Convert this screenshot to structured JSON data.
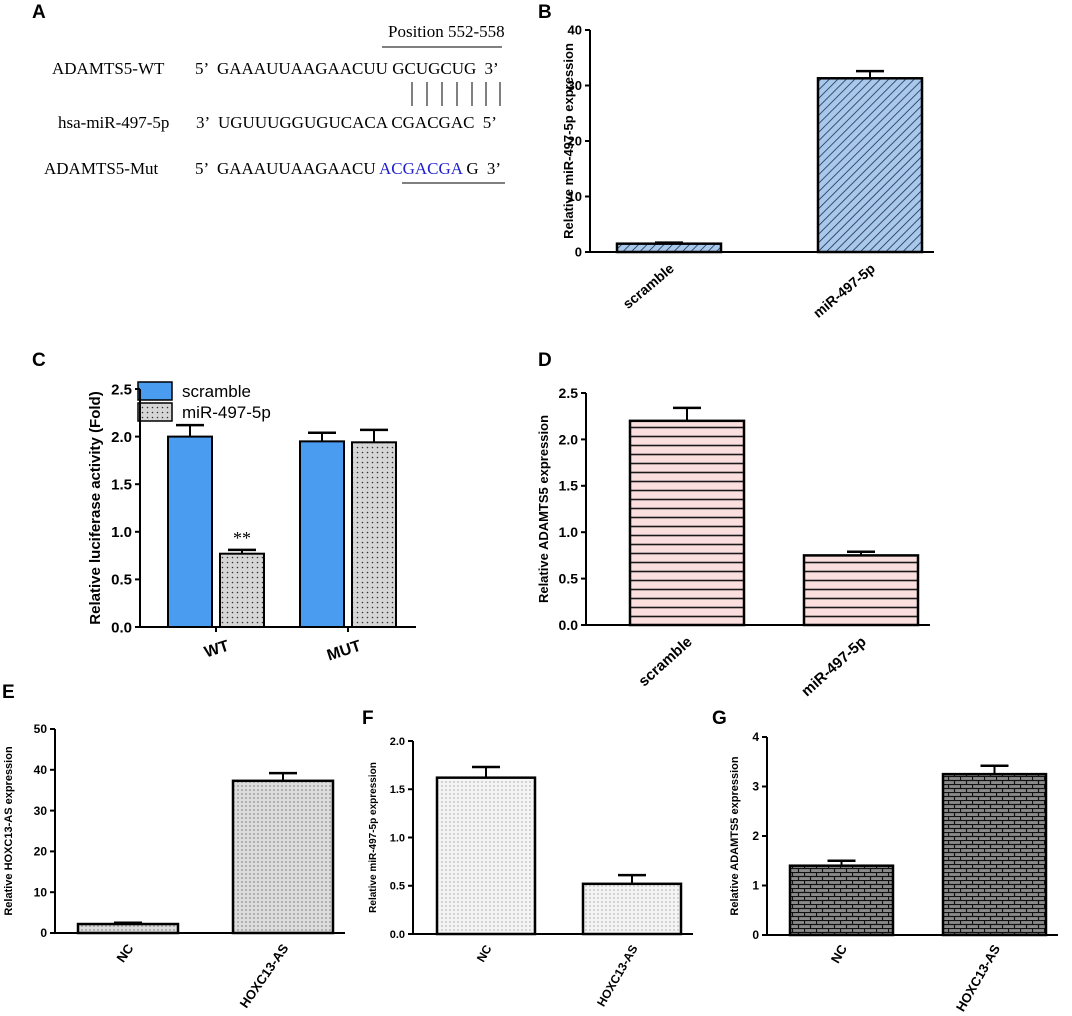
{
  "panel_labels": [
    "A",
    "B",
    "C",
    "D",
    "E",
    "F",
    "G"
  ],
  "panel_a": {
    "position_label": "Position 552-558",
    "wt_name": "ADAMTS5-WT",
    "wt_end5": "5’",
    "wt_seq_a": "GAAAUUAAGAACUU",
    "wt_seq_b": "GCUGCUG",
    "wt_end3": "3’",
    "mir_name": "hsa-miR-497-5p",
    "mir_end3": "3’",
    "mir_seq_a": "UGUUUGGUGUCACA",
    "mir_seq_b": "CGACGAC",
    "mir_end5": "5’",
    "mut_name": "ADAMTS5-Mut",
    "mut_end5": "5’",
    "mut_seq_a": "GAAAUUAAGAACU",
    "mut_seq_b": "ACGACGA",
    "mut_seq_c": "G",
    "mut_end3": "3’",
    "mut_color": "#1f1fd0"
  },
  "chart_data": [
    {
      "id": "B",
      "type": "bar",
      "categories": [
        "scramble",
        "miR-497-5p"
      ],
      "values": [
        1.5,
        31.3
      ],
      "errors": [
        0.2,
        1.3
      ],
      "ylabel": "Relative miR-497-5p expression",
      "ylim": [
        0,
        40
      ],
      "yticks": [
        "0",
        "10",
        "20",
        "30",
        "40"
      ],
      "fill": "#a8c8ec",
      "pattern": "diagonal"
    },
    {
      "id": "C",
      "type": "bar",
      "categories": [
        "WT",
        "MUT"
      ],
      "series": [
        {
          "name": "scramble",
          "values": [
            2.0,
            1.95
          ],
          "errors": [
            0.12,
            0.09
          ],
          "fill": "#4a9cf0"
        },
        {
          "name": "miR-497-5p",
          "values": [
            0.77,
            1.94
          ],
          "errors": [
            0.04,
            0.13
          ],
          "fill": "#d6d6d6"
        }
      ],
      "annotation": "**",
      "ylabel": "Relative luciferase activity (Fold)",
      "ylim": [
        0,
        2.5
      ],
      "yticks": [
        "0.0",
        "0.5",
        "1.0",
        "1.5",
        "2.0",
        "2.5"
      ],
      "legend": "top-left"
    },
    {
      "id": "D",
      "type": "bar",
      "categories": [
        "scramble",
        "miR-497-5p"
      ],
      "values": [
        2.2,
        0.75
      ],
      "errors": [
        0.14,
        0.04
      ],
      "ylabel": "Relative ADAMTS5 expression",
      "ylim": [
        0,
        2.5
      ],
      "yticks": [
        "0.0",
        "0.5",
        "1.0",
        "1.5",
        "2.0",
        "2.5"
      ],
      "fill": "#fbdede",
      "pattern": "horizontal"
    },
    {
      "id": "E",
      "type": "bar",
      "categories": [
        "NC",
        "HOXC13-AS"
      ],
      "values": [
        2.2,
        37.3
      ],
      "errors": [
        0.3,
        1.9
      ],
      "ylabel": "Relative HOXC13-AS expression",
      "ylim": [
        0,
        50
      ],
      "yticks": [
        "0",
        "10",
        "20",
        "30",
        "40",
        "50"
      ],
      "fill": "#dcdcdc",
      "pattern": "dots"
    },
    {
      "id": "F",
      "type": "bar",
      "categories": [
        "NC",
        "HOXC13-AS"
      ],
      "values": [
        1.62,
        0.52
      ],
      "errors": [
        0.11,
        0.09
      ],
      "ylabel": "Relative miR-497-5p expression",
      "ylim": [
        0,
        2.0
      ],
      "yticks": [
        "0.0",
        "0.5",
        "1.0",
        "1.5",
        "2.0"
      ],
      "fill": "#f4f4f4",
      "pattern": "dots"
    },
    {
      "id": "G",
      "type": "bar",
      "categories": [
        "NC",
        "HOXC13-AS"
      ],
      "values": [
        1.4,
        3.25
      ],
      "errors": [
        0.1,
        0.17
      ],
      "ylabel": "Relative ADAMTS5 expression",
      "ylim": [
        0,
        4
      ],
      "yticks": [
        "0",
        "1",
        "2",
        "3",
        "4"
      ],
      "fill": "#8a8a8a",
      "pattern": "brick"
    }
  ]
}
